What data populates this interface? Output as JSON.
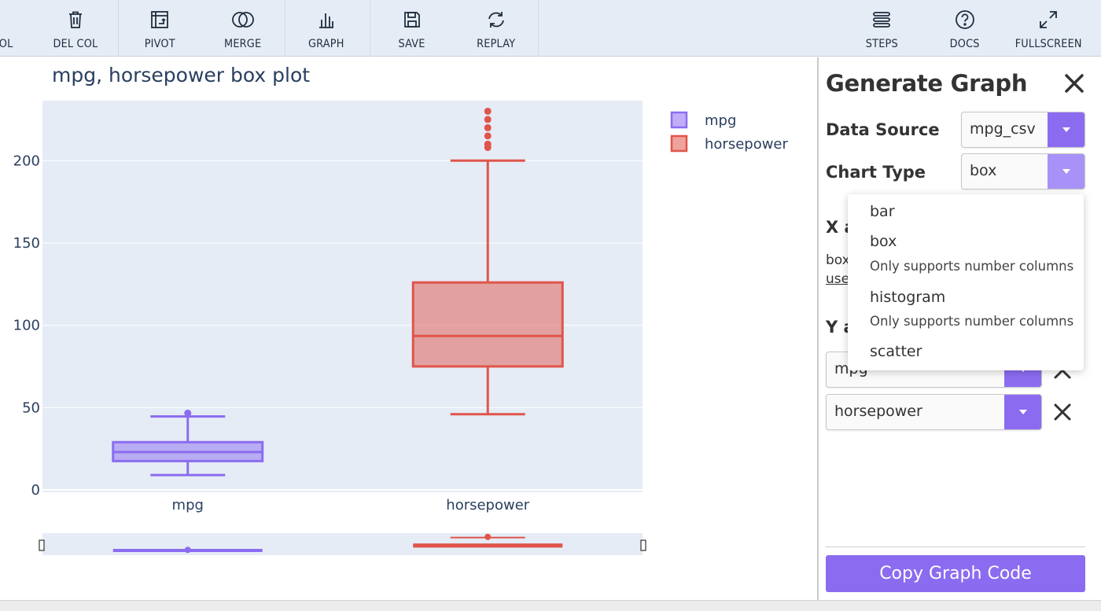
{
  "toolbar": {
    "cut_label": "OL",
    "del_col": "DEL COL",
    "pivot": "PIVOT",
    "merge": "MERGE",
    "graph": "GRAPH",
    "save": "SAVE",
    "replay": "REPLAY",
    "steps": "STEPS",
    "docs": "DOCS",
    "fullscreen": "FULLSCREEN"
  },
  "colors": {
    "accent": "#8b6cf0",
    "mpg": "#8b6cf0",
    "horsepower": "#e0554a",
    "plot_bg": "#e5ecf6"
  },
  "chart_data": {
    "type": "box",
    "title": "mpg, horsepower box plot",
    "categories": [
      "mpg",
      "horsepower"
    ],
    "ylim": [
      0,
      235
    ],
    "yticks": [
      0,
      50,
      100,
      150,
      200
    ],
    "grid": true,
    "legend_position": "top-right",
    "series": [
      {
        "name": "mpg",
        "color": "#8b6cf0",
        "min": 9,
        "q1": 17.5,
        "median": 23,
        "q3": 29,
        "max": 44.6,
        "outliers": [
          46.6
        ]
      },
      {
        "name": "horsepower",
        "color": "#e0554a",
        "min": 46,
        "q1": 75,
        "median": 93.5,
        "q3": 126,
        "max": 200,
        "outliers": [
          208,
          210,
          215,
          220,
          225,
          230
        ]
      }
    ]
  },
  "panel": {
    "title": "Generate Graph",
    "data_source_label": "Data Source",
    "data_source_value": "mpg_csv",
    "chart_type_label": "Chart Type",
    "chart_type_value": "box",
    "x_axis_partial": "X a",
    "box_partial": "box",
    "use_partial": "use",
    "y_axis_partial": "Y a",
    "y1_value": "mpg",
    "y2_value": "horsepower",
    "copy_button": "Copy Graph Code"
  },
  "dropdown": {
    "items": [
      {
        "label": "bar",
        "note": ""
      },
      {
        "label": "box",
        "note": "Only supports number columns"
      },
      {
        "label": "histogram",
        "note": "Only supports number columns"
      },
      {
        "label": "scatter",
        "note": ""
      }
    ]
  }
}
